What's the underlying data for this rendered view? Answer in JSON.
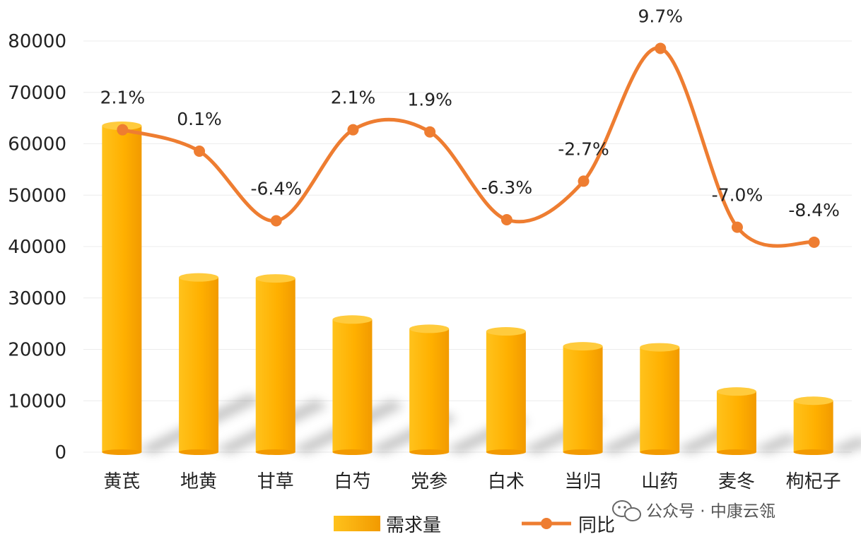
{
  "chart_data": {
    "type": "bar",
    "categories": [
      "黄芪",
      "地黄",
      "甘草",
      "白芍",
      "党参",
      "白术",
      "当归",
      "山药",
      "麦冬",
      "枸杞子"
    ],
    "ylim": [
      0,
      80000
    ],
    "yticks": [
      "0",
      "10000",
      "20000",
      "30000",
      "40000",
      "50000",
      "60000",
      "70000",
      "80000"
    ],
    "grid": true,
    "legend_position": "bottom",
    "series": [
      {
        "name": "需求量",
        "type": "bar",
        "color": "#FFB000",
        "values": [
          63500,
          34000,
          33800,
          25800,
          24000,
          23500,
          20600,
          20400,
          11800,
          10000
        ]
      },
      {
        "name": "同比",
        "type": "line",
        "color": "#EE7D31",
        "labels": [
          "2.1%",
          "0.1%",
          "-6.4%",
          "2.1%",
          "1.9%",
          "-6.3%",
          "-2.7%",
          "9.7%",
          "-7.0%",
          "-8.4%"
        ],
        "values": [
          2.1,
          0.1,
          -6.4,
          2.1,
          1.9,
          -6.3,
          -2.7,
          9.7,
          -7.0,
          -8.4
        ]
      }
    ]
  },
  "watermark": "公众号 · 中康云瓴"
}
